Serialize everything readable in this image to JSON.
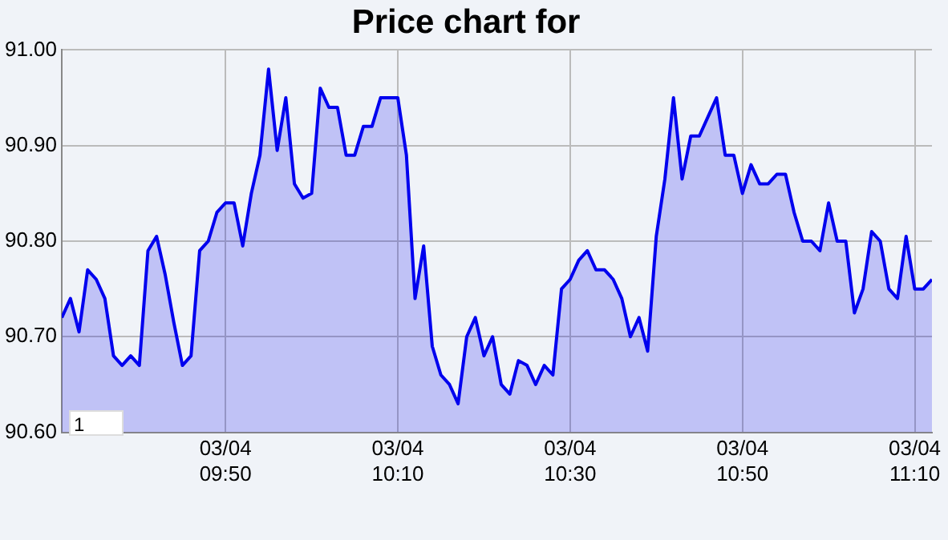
{
  "chart_data": {
    "type": "area",
    "title": "Price chart for",
    "x": [
      "--03-04T09:31",
      "--03-04T09:32",
      "--03-04T09:33",
      "--03-04T09:34",
      "--03-04T09:35",
      "--03-04T09:36",
      "--03-04T09:37",
      "--03-04T09:38",
      "--03-04T09:39",
      "--03-04T09:40",
      "--03-04T09:41",
      "--03-04T09:42",
      "--03-04T09:43",
      "--03-04T09:44",
      "--03-04T09:45",
      "--03-04T09:46",
      "--03-04T09:47",
      "--03-04T09:48",
      "--03-04T09:49",
      "--03-04T09:50",
      "--03-04T09:51",
      "--03-04T09:52",
      "--03-04T09:53",
      "--03-04T09:54",
      "--03-04T09:55",
      "--03-04T09:56",
      "--03-04T09:57",
      "--03-04T09:58",
      "--03-04T09:59",
      "--03-04T10:00",
      "--03-04T10:01",
      "--03-04T10:02",
      "--03-04T10:03",
      "--03-04T10:04",
      "--03-04T10:05",
      "--03-04T10:06",
      "--03-04T10:07",
      "--03-04T10:08",
      "--03-04T10:09",
      "--03-04T10:10",
      "--03-04T10:11",
      "--03-04T10:12",
      "--03-04T10:13",
      "--03-04T10:14",
      "--03-04T10:15",
      "--03-04T10:16",
      "--03-04T10:17",
      "--03-04T10:18",
      "--03-04T10:19",
      "--03-04T10:20",
      "--03-04T10:21",
      "--03-04T10:22",
      "--03-04T10:23",
      "--03-04T10:24",
      "--03-04T10:25",
      "--03-04T10:26",
      "--03-04T10:27",
      "--03-04T10:28",
      "--03-04T10:29",
      "--03-04T10:30",
      "--03-04T10:31",
      "--03-04T10:32",
      "--03-04T10:33",
      "--03-04T10:34",
      "--03-04T10:35",
      "--03-04T10:36",
      "--03-04T10:37",
      "--03-04T10:38",
      "--03-04T10:39",
      "--03-04T10:40",
      "--03-04T10:41",
      "--03-04T10:42",
      "--03-04T10:43",
      "--03-04T10:44",
      "--03-04T10:45",
      "--03-04T10:46",
      "--03-04T10:47",
      "--03-04T10:48",
      "--03-04T10:49",
      "--03-04T10:50",
      "--03-04T10:51",
      "--03-04T10:52",
      "--03-04T10:53",
      "--03-04T10:54",
      "--03-04T10:55",
      "--03-04T10:56",
      "--03-04T10:57",
      "--03-04T10:58",
      "--03-04T10:59",
      "--03-04T11:00",
      "--03-04T11:01",
      "--03-04T11:02",
      "--03-04T11:03",
      "--03-04T11:04",
      "--03-04T11:05",
      "--03-04T11:06",
      "--03-04T11:07",
      "--03-04T11:08",
      "--03-04T11:09",
      "--03-04T11:10",
      "--03-04T11:11",
      "--03-04T11:12"
    ],
    "series": [
      {
        "color": "#0000ee",
        "values": [
          90.72,
          90.74,
          90.705,
          90.77,
          90.76,
          90.74,
          90.68,
          90.67,
          90.68,
          90.67,
          90.79,
          90.805,
          90.765,
          90.715,
          90.67,
          90.68,
          90.79,
          90.8,
          90.83,
          90.84,
          90.84,
          90.795,
          90.85,
          90.89,
          90.98,
          90.895,
          90.95,
          90.86,
          90.845,
          90.85,
          90.96,
          90.94,
          90.94,
          90.89,
          90.89,
          90.92,
          90.92,
          90.95,
          90.95,
          90.95,
          90.89,
          90.74,
          90.795,
          90.69,
          90.66,
          90.65,
          90.63,
          90.7,
          90.72,
          90.68,
          90.7,
          90.65,
          90.64,
          90.675,
          90.67,
          90.65,
          90.67,
          90.66,
          90.75,
          90.76,
          90.78,
          90.79,
          90.77,
          90.77,
          90.76,
          90.74,
          90.7,
          90.72,
          90.685,
          90.805,
          90.865,
          90.95,
          90.865,
          90.91,
          90.91,
          90.93,
          90.95,
          90.89,
          90.89,
          90.85,
          90.88,
          90.86,
          90.86,
          90.87,
          90.87,
          90.83,
          90.8,
          90.8,
          90.79,
          90.84,
          90.8,
          90.8,
          90.725,
          90.75,
          90.81,
          90.8,
          90.75,
          90.74,
          90.805,
          90.75,
          90.75,
          90.76
        ]
      }
    ],
    "xlim": [
      "--03-04T09:31",
      "--03-04T11:12"
    ],
    "xticks": [
      {
        "value": "--03-04T09:50",
        "label": "03/04\n09:50"
      },
      {
        "value": "--03-04T10:10",
        "label": "03/04\n10:10"
      },
      {
        "value": "--03-04T10:30",
        "label": "03/04\n10:30"
      },
      {
        "value": "--03-04T10:50",
        "label": "03/04\n10:50"
      },
      {
        "value": "--03-04T11:10",
        "label": "03/04\n11:10"
      }
    ],
    "ylim": [
      90.6,
      91
    ],
    "yticks": [
      {
        "value": 90.6,
        "label": "90.60"
      },
      {
        "value": 90.7,
        "label": "90.70"
      },
      {
        "value": 90.8,
        "label": "90.80"
      },
      {
        "value": 90.9,
        "label": "90.90"
      },
      {
        "value": 91,
        "label": "91.00"
      }
    ],
    "annotations": [
      "1"
    ],
    "grid": true,
    "legend": false,
    "marker": "none",
    "line_style": "solid"
  }
}
